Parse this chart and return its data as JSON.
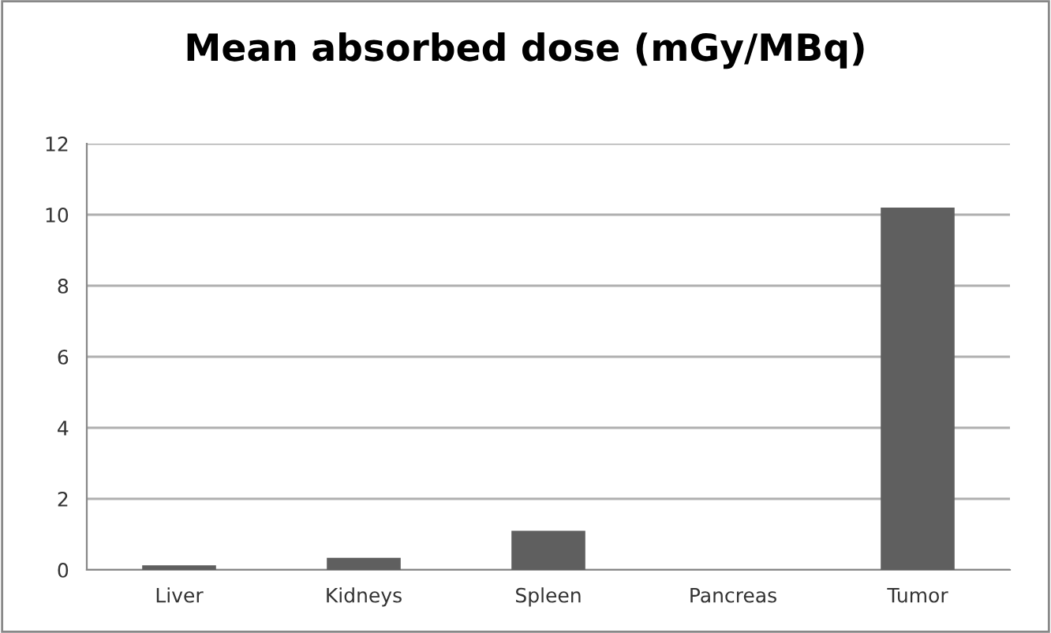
{
  "chart_data": {
    "type": "bar",
    "title": "Mean absorbed dose (mGy/MBq)",
    "categories": [
      "Liver",
      "Kidneys",
      "Spleen",
      "Pancreas",
      "Tumor"
    ],
    "values": [
      0.13,
      0.34,
      1.1,
      0,
      10.2
    ],
    "color": "#5f5f5f",
    "ylim": [
      0,
      12
    ],
    "yticks": [
      0,
      2,
      4,
      6,
      8,
      10,
      12
    ],
    "grid": "y"
  }
}
